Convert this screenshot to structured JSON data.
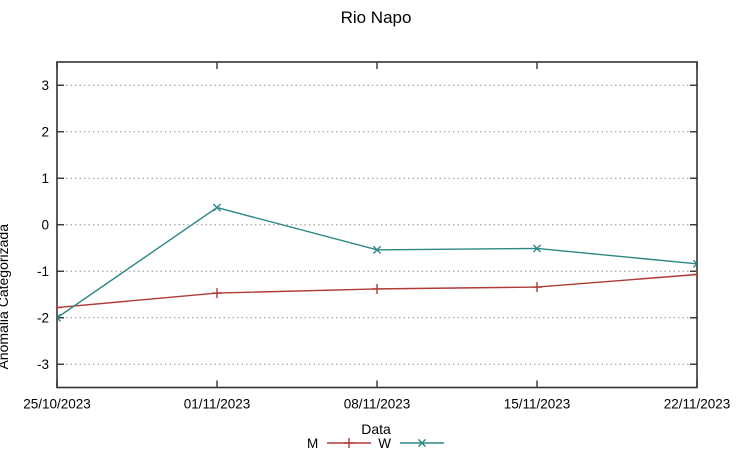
{
  "page": {
    "background": "#ffffff"
  },
  "chart_data": {
    "type": "line",
    "title": "Rio Napo",
    "xlabel": "Data",
    "ylabel": "Anomalia Categorizada",
    "categories": [
      "25/10/2023",
      "01/11/2023",
      "08/11/2023",
      "15/11/2023",
      "22/11/2023"
    ],
    "y_ticks": [
      3,
      2,
      1,
      0,
      -1,
      -2,
      -3
    ],
    "ylim": [
      -3.5,
      3.5
    ],
    "grid": "horizontal-dotted",
    "legend_position": "bottom-center",
    "series": [
      {
        "name": "M",
        "color": "#b03a35",
        "marker": "plus",
        "values": [
          -1.78,
          -1.47,
          -1.38,
          -1.34,
          -1.07
        ]
      },
      {
        "name": "W",
        "color": "#2d8884",
        "marker": "x",
        "values": [
          -2.0,
          0.37,
          -0.54,
          -0.51,
          -0.84
        ]
      }
    ],
    "colors": {
      "grid": "#909090",
      "border": "#333333",
      "text": "#000000"
    }
  }
}
